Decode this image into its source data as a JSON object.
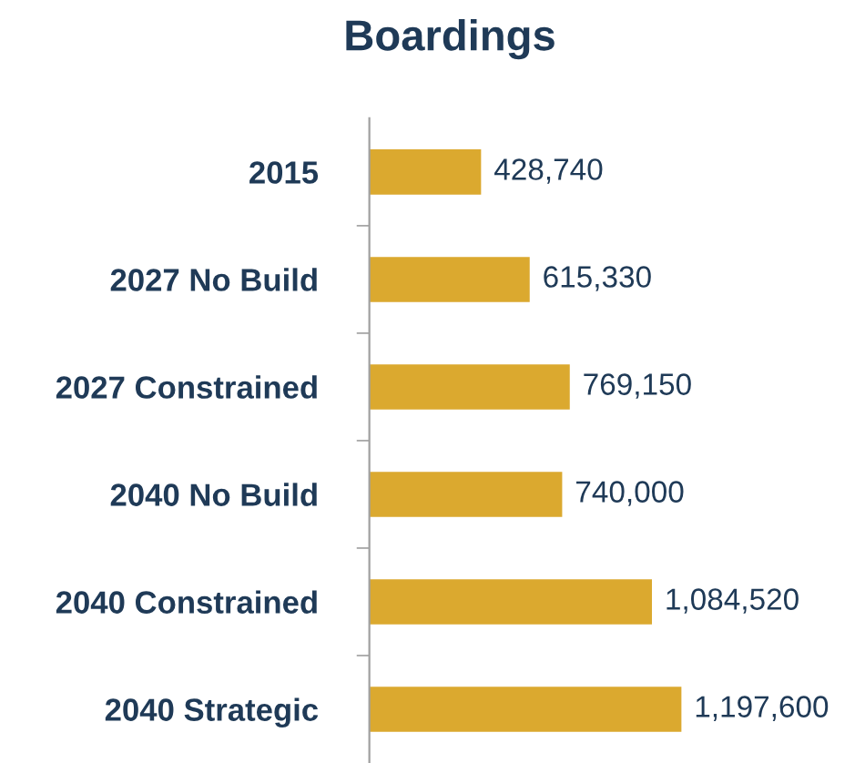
{
  "chart_data": {
    "type": "bar",
    "orientation": "horizontal",
    "title": "Boardings",
    "categories": [
      "2015",
      "2027 No Build",
      "2027 Constrained",
      "2040 No Build",
      "2040 Constrained",
      "2040 Strategic"
    ],
    "values": [
      428740,
      615330,
      769150,
      740000,
      1084520,
      1197600
    ],
    "value_labels": [
      "428,740",
      "615,330",
      "769,150",
      "740,000",
      "1,084,520",
      "1,197,600"
    ],
    "color": "#dba92f",
    "grid": false,
    "legend": false
  }
}
